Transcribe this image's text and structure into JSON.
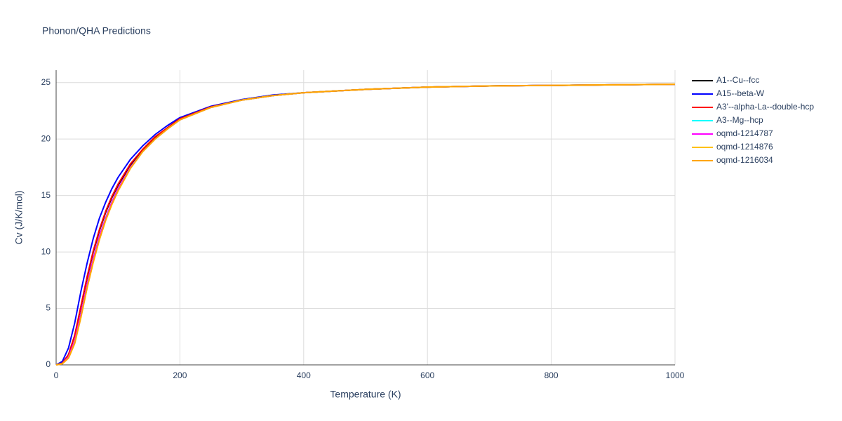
{
  "chart_data": {
    "type": "line",
    "title": "Phonon/QHA Predictions",
    "x_label": "Temperature (K)",
    "y_label": "Cv (J/K/mol)",
    "xlim": [
      0,
      1000
    ],
    "ylim": [
      0,
      26.1
    ],
    "xticks": [
      0,
      200,
      400,
      600,
      800,
      1000
    ],
    "yticks": [
      0,
      5,
      10,
      15,
      20,
      25
    ],
    "grid": true,
    "legend": "top-right",
    "x": [
      0,
      10,
      20,
      30,
      40,
      50,
      60,
      70,
      80,
      90,
      100,
      120,
      140,
      160,
      180,
      200,
      250,
      300,
      350,
      400,
      500,
      600,
      700,
      800,
      900,
      1000
    ],
    "series": [
      {
        "name": "A1--Cu--fcc",
        "color": "#000000",
        "values": [
          0,
          0.15,
          0.9,
          2.6,
          5.1,
          7.7,
          10.0,
          11.9,
          13.5,
          14.8,
          15.9,
          17.7,
          19.0,
          20.1,
          21.0,
          21.8,
          22.85,
          23.45,
          23.85,
          24.1,
          24.4,
          24.6,
          24.7,
          24.75,
          24.8,
          24.85
        ]
      },
      {
        "name": "A15--beta-W",
        "color": "#0000ff",
        "values": [
          0,
          0.3,
          1.5,
          3.7,
          6.5,
          9.0,
          11.2,
          13.0,
          14.4,
          15.6,
          16.6,
          18.2,
          19.4,
          20.4,
          21.2,
          21.9,
          22.9,
          23.5,
          23.9,
          24.1,
          24.4,
          24.6,
          24.7,
          24.75,
          24.8,
          24.85
        ]
      },
      {
        "name": "A3'--alpha-La--double-hcp",
        "color": "#ff0000",
        "values": [
          0,
          0.15,
          0.9,
          2.6,
          5.2,
          7.8,
          10.1,
          12.0,
          13.6,
          14.9,
          16.0,
          17.8,
          19.1,
          20.2,
          21.0,
          21.8,
          22.85,
          23.45,
          23.85,
          24.1,
          24.4,
          24.6,
          24.7,
          24.75,
          24.8,
          24.85
        ]
      },
      {
        "name": "A3--Mg--hcp",
        "color": "#00ffff",
        "values": [
          0,
          0.1,
          0.7,
          2.1,
          4.5,
          7.1,
          9.4,
          11.4,
          13.0,
          14.4,
          15.6,
          17.5,
          18.9,
          20.0,
          20.9,
          21.7,
          22.8,
          23.45,
          23.85,
          24.1,
          24.4,
          24.6,
          24.7,
          24.75,
          24.8,
          24.85
        ]
      },
      {
        "name": "oqmd-1214787",
        "color": "#ff00ff",
        "values": [
          0,
          0.1,
          0.7,
          2.1,
          4.5,
          7.1,
          9.4,
          11.4,
          13.0,
          14.4,
          15.6,
          17.5,
          18.9,
          20.0,
          20.9,
          21.7,
          22.8,
          23.45,
          23.85,
          24.1,
          24.4,
          24.6,
          24.7,
          24.75,
          24.8,
          24.85
        ]
      },
      {
        "name": "oqmd-1214876",
        "color": "#ffc000",
        "values": [
          0,
          0.1,
          0.6,
          1.9,
          4.2,
          6.8,
          9.1,
          11.1,
          12.8,
          14.2,
          15.4,
          17.4,
          18.9,
          20.0,
          20.9,
          21.7,
          22.8,
          23.45,
          23.85,
          24.1,
          24.4,
          24.6,
          24.7,
          24.75,
          24.8,
          24.85
        ]
      },
      {
        "name": "oqmd-1216034",
        "color": "#ffa500",
        "values": [
          0,
          0.1,
          0.6,
          1.9,
          4.2,
          6.8,
          9.1,
          11.1,
          12.8,
          14.2,
          15.4,
          17.4,
          18.9,
          20.0,
          20.9,
          21.7,
          22.8,
          23.45,
          23.85,
          24.1,
          24.4,
          24.6,
          24.7,
          24.75,
          24.8,
          24.85
        ]
      }
    ]
  }
}
